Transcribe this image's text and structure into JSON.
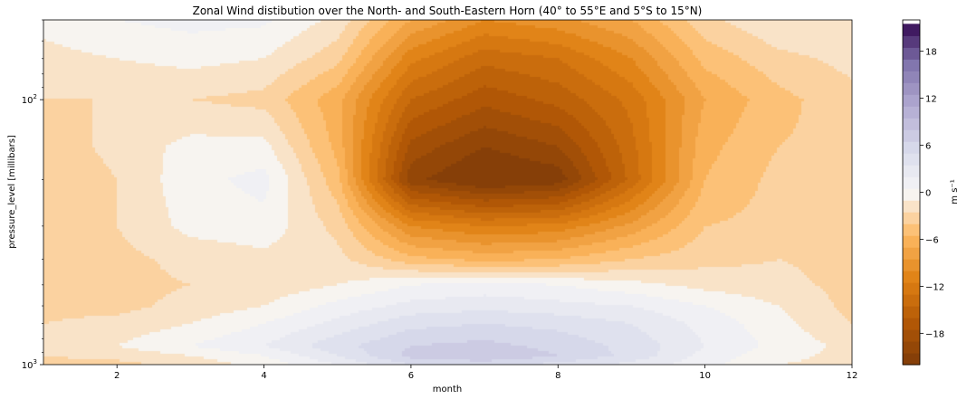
{
  "chart_data": {
    "type": "heatmap",
    "subtype": "filled-contour",
    "title": "Zonal Wind distibution over the North- and South-Eastern Horn (40° to 55°E and 5°S to 15°N)",
    "xlabel": "month",
    "ylabel": "pressure_level [millibars]",
    "colorbar_label": "m s⁻¹",
    "xlim": [
      1,
      12
    ],
    "ylim": [
      1000,
      50
    ],
    "y_scale": "log",
    "y_inverted": true,
    "x_ticks": [
      2,
      4,
      6,
      8,
      10,
      12
    ],
    "y_tick_labels": [
      {
        "value": 100,
        "base": "10",
        "exp": "2"
      },
      {
        "value": 1000,
        "base": "10",
        "exp": "3"
      }
    ],
    "colorbar_ticks": [
      18,
      12,
      6,
      0,
      -6,
      -12,
      -18
    ],
    "colorbar_range": [
      -22,
      22
    ],
    "colormap": "PuOr",
    "months": [
      1,
      2,
      3,
      4,
      5,
      6,
      7,
      8,
      9,
      10,
      11,
      12
    ],
    "pressure_levels": [
      50,
      70,
      100,
      150,
      200,
      300,
      400,
      500,
      600,
      700,
      850,
      925,
      1000
    ],
    "values": [
      [
        -0.5,
        0.5,
        1.0,
        0.8,
        -1.5,
        -7.0,
        -10.0,
        -9.0,
        -7.0,
        -3.0,
        -1.0,
        -1.0
      ],
      [
        -1.5,
        -1.0,
        -0.5,
        -1.0,
        -3.5,
        -11.0,
        -14.0,
        -13.0,
        -10.0,
        -5.0,
        -3.0,
        -2.0
      ],
      [
        -2.5,
        -2.5,
        -2.5,
        -3.0,
        -6.5,
        -14.5,
        -17.0,
        -15.5,
        -12.5,
        -7.0,
        -4.5,
        -3.0
      ],
      [
        -3.5,
        -2.0,
        -0.5,
        -0.5,
        -6.0,
        -18.0,
        -20.5,
        -19.0,
        -13.5,
        -6.0,
        -4.0,
        -3.5
      ],
      [
        -4.0,
        -2.5,
        0.0,
        1.0,
        -5.0,
        -20.0,
        -22.5,
        -21.5,
        -14.0,
        -5.5,
        -3.5,
        -4.0
      ],
      [
        -3.5,
        -2.5,
        -0.5,
        0.0,
        -3.0,
        -10.0,
        -11.5,
        -11.0,
        -8.0,
        -4.0,
        -3.5,
        -3.5
      ],
      [
        -3.0,
        -3.0,
        -2.0,
        -1.5,
        -2.0,
        -5.0,
        -6.0,
        -5.5,
        -4.0,
        -3.0,
        -2.5,
        -3.0
      ],
      [
        -3.0,
        -3.0,
        -2.5,
        -2.0,
        -1.0,
        0.5,
        1.0,
        0.5,
        -0.5,
        -1.5,
        -2.0,
        -3.0
      ],
      [
        -3.0,
        -3.0,
        -2.0,
        -1.0,
        1.0,
        2.5,
        3.0,
        2.5,
        2.0,
        0.5,
        -1.0,
        -3.0
      ],
      [
        -2.5,
        -2.0,
        -1.0,
        0.5,
        2.5,
        4.5,
        5.0,
        4.5,
        3.5,
        1.5,
        -0.5,
        -2.5
      ],
      [
        -1.5,
        -1.0,
        0.5,
        2.0,
        4.5,
        6.5,
        7.0,
        6.0,
        4.5,
        2.0,
        0.0,
        -1.5
      ],
      [
        -2.5,
        -2.0,
        -1.0,
        0.5,
        3.5,
        7.0,
        8.0,
        6.5,
        4.5,
        1.5,
        -0.5,
        -1.5
      ],
      [
        -3.0,
        -3.0,
        -2.0,
        -0.5,
        2.0,
        5.0,
        5.5,
        4.5,
        3.0,
        1.0,
        -1.0,
        -1.5
      ]
    ]
  }
}
